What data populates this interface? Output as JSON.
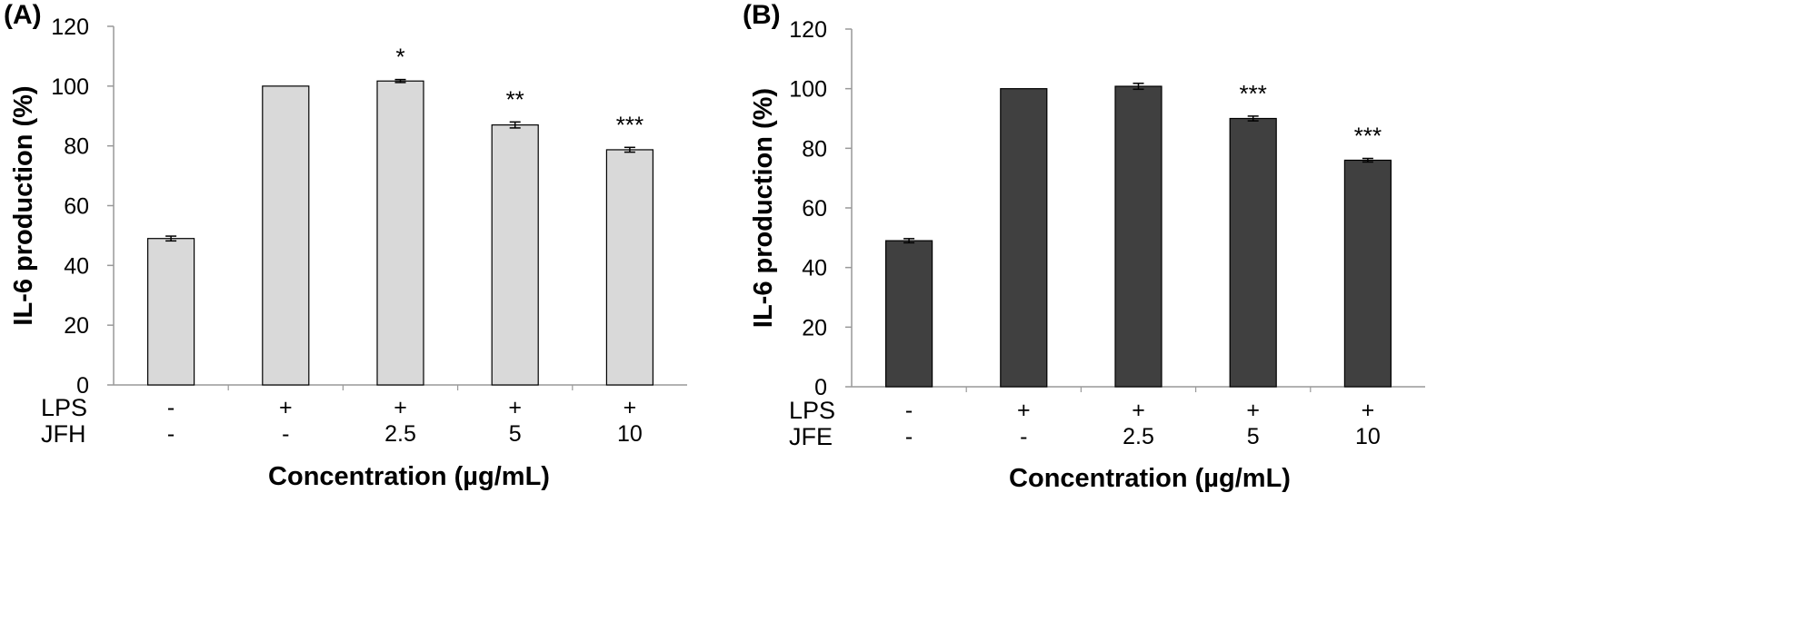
{
  "chart_data": [
    {
      "type": "bar",
      "panel_label": "(A)",
      "ylabel": "IL-6 production (%)",
      "xlabel": "Concentration (µg/mL)",
      "ylim": [
        0,
        120
      ],
      "yticks": [
        "0",
        "20",
        "40",
        "60",
        "80",
        "100",
        "120"
      ],
      "grid": false,
      "bar_color": "#d9d9d9",
      "treatment_rows": [
        {
          "label": "LPS",
          "values": [
            "-",
            "+",
            "+",
            "+",
            "+"
          ]
        },
        {
          "label": "JFH",
          "values": [
            "-",
            "-",
            "2.5",
            "5",
            "10"
          ]
        }
      ],
      "values": [
        49,
        100,
        101.7,
        87,
        78.7
      ],
      "errors": [
        0.8,
        0,
        0.5,
        1.0,
        0.8
      ],
      "significance": [
        "",
        "",
        "*",
        "**",
        "***"
      ]
    },
    {
      "type": "bar",
      "panel_label": "(B)",
      "ylabel": "IL-6 production (%)",
      "xlabel": "Concentration (µg/mL)",
      "ylim": [
        0,
        120
      ],
      "yticks": [
        "0",
        "20",
        "40",
        "60",
        "80",
        "100",
        "120"
      ],
      "grid": false,
      "bar_color": "#404040",
      "treatment_rows": [
        {
          "label": "LPS",
          "values": [
            "-",
            "+",
            "+",
            "+",
            "+"
          ]
        },
        {
          "label": "JFE",
          "values": [
            "-",
            "-",
            "2.5",
            "5",
            "10"
          ]
        }
      ],
      "values": [
        49,
        100,
        100.8,
        90,
        76
      ],
      "errors": [
        0.7,
        0,
        1.0,
        0.8,
        0.6
      ],
      "significance": [
        "",
        "",
        "",
        "***",
        "***"
      ]
    }
  ]
}
